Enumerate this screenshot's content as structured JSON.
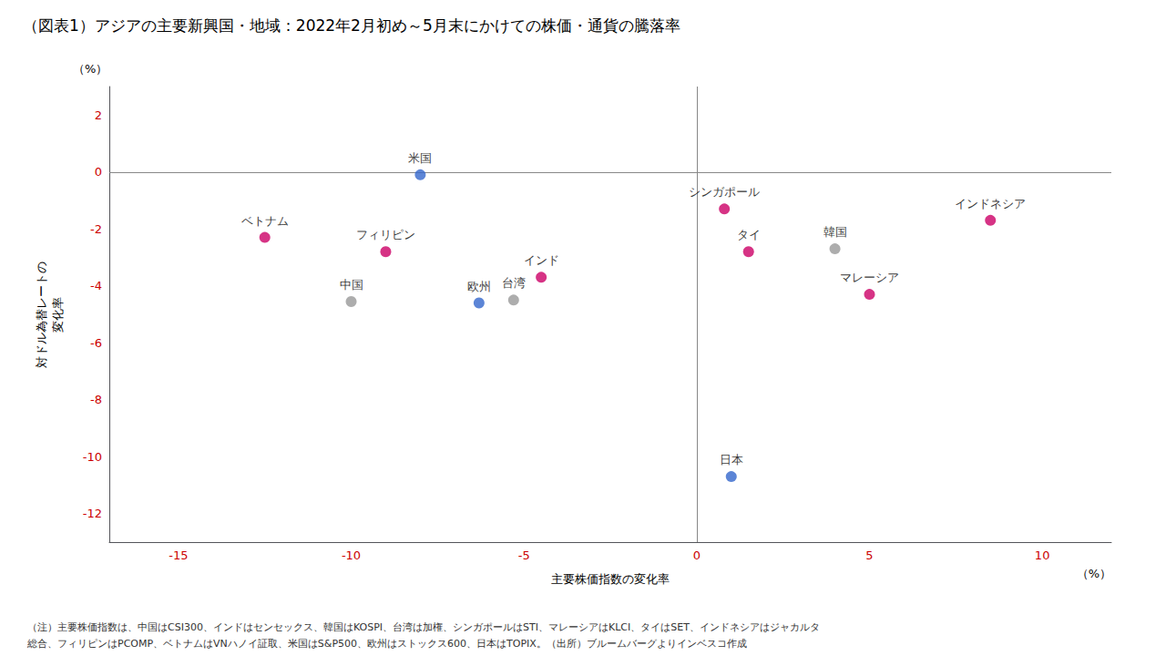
{
  "chart_data": {
    "type": "scatter",
    "title": "（図表1）アジアの主要新興国・地域：2022年2月初め～5月末にかけての株価・通貨の騰落率",
    "xlabel": "主要株価指数の変化率",
    "ylabel": [
      "対ドル為替レートの",
      "変化率"
    ],
    "x_unit": "（%）",
    "y_unit": "（%）",
    "labels": [
      "米国",
      "ベトナム",
      "中国",
      "フィリピン",
      "欧州",
      "台湾",
      "インド",
      "シンガポール",
      "タイ",
      "韓国",
      "マレーシア",
      "インドネシア",
      "日本"
    ],
    "x": [
      -8.0,
      -12.5,
      -10.0,
      -9.0,
      -6.3,
      -5.3,
      -4.5,
      0.8,
      1.5,
      4.0,
      5.0,
      8.5,
      1.0
    ],
    "values": [
      -0.1,
      -2.3,
      -4.55,
      -2.8,
      -4.6,
      -4.5,
      -3.7,
      -1.3,
      -2.8,
      -2.7,
      -4.3,
      -1.7,
      -10.7
    ],
    "colors": [
      "#3366cc",
      "#cc0066",
      "#999999",
      "#cc0066",
      "#3366cc",
      "#999999",
      "#cc0066",
      "#cc0066",
      "#cc0066",
      "#999999",
      "#cc0066",
      "#cc0066",
      "#3366cc"
    ],
    "xlim": [
      -17,
      12
    ],
    "ylim": [
      -13,
      3
    ],
    "xticks": [
      -15,
      -10,
      -5,
      0,
      5,
      10
    ],
    "yticks": [
      -12,
      -10,
      -8,
      -6,
      -4,
      -2,
      0,
      2
    ],
    "tick_color": "#cc0000",
    "hline": {
      "y": 0,
      "color": "#888888"
    },
    "vline": {
      "x": 0,
      "color": "#888888"
    },
    "grid": false,
    "notes": [
      "（注）主要株価指数は、中国はCSI300、インドはセンセックス、韓国はKOSPI、台湾は加権、シンガポールはSTI、マレーシアはKLCI、タイはSET、インドネシアはジャカルタ",
      "総合、フィリピンはPCOMP、ベトナムはVNハノイ証取、米国はS&P500、欧州はストックス600、日本はTOPIX。（出所）ブルームバーグよりインベスコ作成"
    ]
  }
}
